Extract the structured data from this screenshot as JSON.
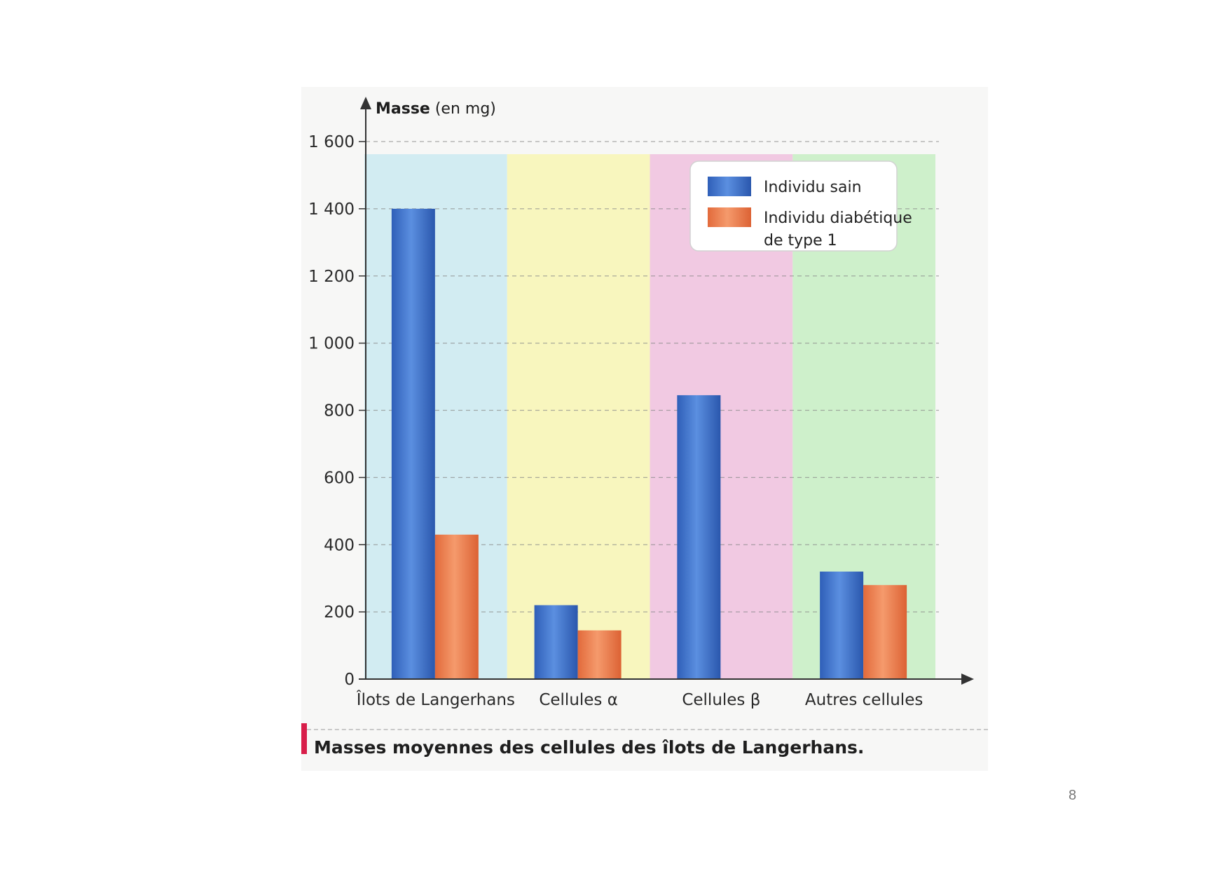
{
  "chart_data": {
    "type": "bar",
    "title": "",
    "ylabel": "Masse (en mg)",
    "ylabel_bold": "Masse",
    "ylabel_rest": " (en mg)",
    "xlabel": "",
    "ylim": [
      0,
      1600
    ],
    "yticks": [
      0,
      200,
      400,
      600,
      800,
      1000,
      1200,
      1400,
      1600
    ],
    "ytick_labels": [
      "0",
      "200",
      "400",
      "600",
      "800",
      "1 000",
      "1 200",
      "1 400",
      "1 600"
    ],
    "grid": "dashed horizontal",
    "legend_position": "top-right",
    "categories": [
      "Îlots de Langerhans",
      "Cellules α",
      "Cellules β",
      "Autres cellules"
    ],
    "category_backgrounds": [
      "#cdeaf2",
      "#f7f5b8",
      "#f0c3e0",
      "#c9eec6"
    ],
    "series": [
      {
        "name": "Individu sain",
        "color": "#3f72c9",
        "values": [
          1400,
          220,
          845,
          320
        ]
      },
      {
        "name": "Individu diabétique de type 1",
        "legend_lines": [
          "Individu diabétique",
          "de type 1"
        ],
        "color": "#ea7b4d",
        "values": [
          430,
          145,
          0,
          280
        ]
      }
    ]
  },
  "caption": "Masses moyennes des cellules des îlots de Langerhans.",
  "page_number": "8"
}
